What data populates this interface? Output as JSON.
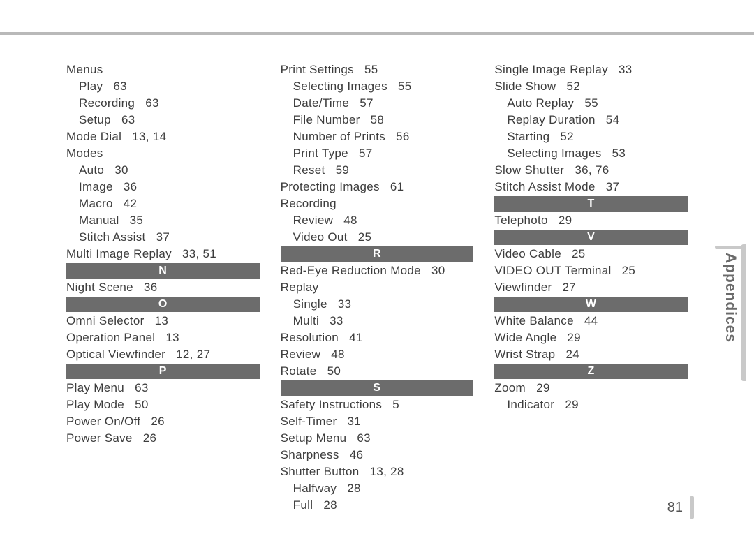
{
  "page_number": "81",
  "side_label": "Appendices",
  "colors": {
    "rule": "#b9b9b9",
    "section_bg": "#6c6c6c",
    "section_fg": "#ffffff",
    "text": "#3d3d3d",
    "tab": "#c9c9c9",
    "side_label": "#6a6a6a"
  },
  "columns": [
    [
      {
        "t": "entry",
        "label": "Menus"
      },
      {
        "t": "sub",
        "label": "Play",
        "pages": "63"
      },
      {
        "t": "sub",
        "label": "Recording",
        "pages": "63"
      },
      {
        "t": "sub",
        "label": "Setup",
        "pages": "63"
      },
      {
        "t": "entry",
        "label": "Mode Dial",
        "pages": "13, 14"
      },
      {
        "t": "entry",
        "label": "Modes"
      },
      {
        "t": "sub",
        "label": "Auto",
        "pages": "30"
      },
      {
        "t": "sub",
        "label": "Image",
        "pages": "36"
      },
      {
        "t": "sub",
        "label": "Macro",
        "pages": "42"
      },
      {
        "t": "sub",
        "label": "Manual",
        "pages": "35"
      },
      {
        "t": "sub",
        "label": "Stitch Assist",
        "pages": "37"
      },
      {
        "t": "entry",
        "label": "Multi Image Replay",
        "pages": "33, 51"
      },
      {
        "t": "section",
        "label": "N"
      },
      {
        "t": "entry",
        "label": "Night Scene",
        "pages": "36"
      },
      {
        "t": "section",
        "label": "O"
      },
      {
        "t": "entry",
        "label": "Omni Selector",
        "pages": "13"
      },
      {
        "t": "entry",
        "label": "Operation Panel",
        "pages": "13"
      },
      {
        "t": "entry",
        "label": "Optical Viewfinder",
        "pages": "12, 27"
      },
      {
        "t": "section",
        "label": "P"
      },
      {
        "t": "entry",
        "label": "Play Menu",
        "pages": "63"
      },
      {
        "t": "entry",
        "label": "Play Mode",
        "pages": "50"
      },
      {
        "t": "entry",
        "label": "Power On/Off",
        "pages": "26"
      },
      {
        "t": "entry",
        "label": "Power Save",
        "pages": "26"
      }
    ],
    [
      {
        "t": "entry",
        "label": "Print Settings",
        "pages": "55"
      },
      {
        "t": "sub",
        "label": "Selecting Images",
        "pages": "55"
      },
      {
        "t": "sub",
        "label": "Date/Time",
        "pages": "57"
      },
      {
        "t": "sub",
        "label": "File Number",
        "pages": "58"
      },
      {
        "t": "sub",
        "label": "Number of Prints",
        "pages": "56"
      },
      {
        "t": "sub",
        "label": "Print Type",
        "pages": "57"
      },
      {
        "t": "sub",
        "label": "Reset",
        "pages": "59"
      },
      {
        "t": "entry",
        "label": "Protecting Images",
        "pages": "61"
      },
      {
        "t": "entry",
        "label": "Recording"
      },
      {
        "t": "sub",
        "label": "Review",
        "pages": "48"
      },
      {
        "t": "sub",
        "label": "Video Out",
        "pages": "25"
      },
      {
        "t": "section",
        "label": "R"
      },
      {
        "t": "entry",
        "label": "Red-Eye Reduction Mode",
        "pages": "30"
      },
      {
        "t": "entry",
        "label": "Replay"
      },
      {
        "t": "sub",
        "label": "Single",
        "pages": "33"
      },
      {
        "t": "sub",
        "label": "Multi",
        "pages": "33"
      },
      {
        "t": "entry",
        "label": "Resolution",
        "pages": "41"
      },
      {
        "t": "entry",
        "label": "Review",
        "pages": "48"
      },
      {
        "t": "entry",
        "label": "Rotate",
        "pages": "50"
      },
      {
        "t": "section",
        "label": "S"
      },
      {
        "t": "entry",
        "label": "Safety Instructions",
        "pages": "5"
      },
      {
        "t": "entry",
        "label": "Self-Timer",
        "pages": "31"
      },
      {
        "t": "entry",
        "label": "Setup Menu",
        "pages": "63"
      },
      {
        "t": "entry",
        "label": "Sharpness",
        "pages": "46"
      },
      {
        "t": "entry",
        "label": "Shutter Button",
        "pages": "13, 28"
      },
      {
        "t": "sub",
        "label": "Halfway",
        "pages": "28"
      },
      {
        "t": "sub",
        "label": "Full",
        "pages": "28"
      }
    ],
    [
      {
        "t": "entry",
        "label": "Single Image Replay",
        "pages": "33"
      },
      {
        "t": "entry",
        "label": "Slide Show",
        "pages": "52"
      },
      {
        "t": "sub",
        "label": "Auto Replay",
        "pages": "55"
      },
      {
        "t": "sub",
        "label": "Replay Duration",
        "pages": "54"
      },
      {
        "t": "sub",
        "label": "Starting",
        "pages": "52"
      },
      {
        "t": "sub",
        "label": "Selecting Images",
        "pages": "53"
      },
      {
        "t": "entry",
        "label": "Slow Shutter",
        "pages": "36, 76"
      },
      {
        "t": "entry",
        "label": "Stitch Assist Mode",
        "pages": "37"
      },
      {
        "t": "section",
        "label": "T"
      },
      {
        "t": "entry",
        "label": "Telephoto",
        "pages": "29"
      },
      {
        "t": "section",
        "label": "V"
      },
      {
        "t": "entry",
        "label": "Video Cable",
        "pages": "25"
      },
      {
        "t": "entry",
        "label": "VIDEO OUT Terminal",
        "pages": "25"
      },
      {
        "t": "entry",
        "label": "Viewfinder",
        "pages": "27"
      },
      {
        "t": "section",
        "label": "W"
      },
      {
        "t": "entry",
        "label": "White Balance",
        "pages": "44"
      },
      {
        "t": "entry",
        "label": "Wide Angle",
        "pages": "29"
      },
      {
        "t": "entry",
        "label": "Wrist Strap",
        "pages": "24"
      },
      {
        "t": "section",
        "label": "Z"
      },
      {
        "t": "entry",
        "label": "Zoom",
        "pages": "29"
      },
      {
        "t": "sub",
        "label": "Indicator",
        "pages": "29"
      }
    ]
  ]
}
